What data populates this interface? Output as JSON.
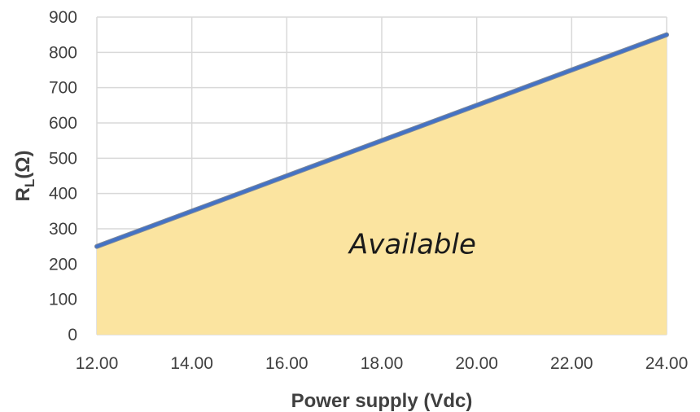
{
  "chart_data": {
    "type": "area",
    "title": "",
    "xlabel": "Power supply (Vdc)",
    "ylabel": "R_L(Ω)",
    "ylabel_main": "R",
    "ylabel_sub": "L",
    "ylabel_unit": "(Ω)",
    "xlim": [
      12,
      24
    ],
    "ylim": [
      0,
      900
    ],
    "x_ticks": [
      "12.00",
      "14.00",
      "16.00",
      "18.00",
      "20.00",
      "22.00",
      "24.00"
    ],
    "y_ticks": [
      "0",
      "100",
      "200",
      "300",
      "400",
      "500",
      "600",
      "700",
      "800",
      "900"
    ],
    "grid": true,
    "legend": "none",
    "series": [
      {
        "x": [
          12,
          24
        ],
        "values": [
          250,
          850
        ]
      }
    ],
    "annotation": "Available",
    "colors": {
      "line": "#4472c4",
      "fill": "#fbe4a0",
      "grid": "#d9d9d9"
    }
  }
}
